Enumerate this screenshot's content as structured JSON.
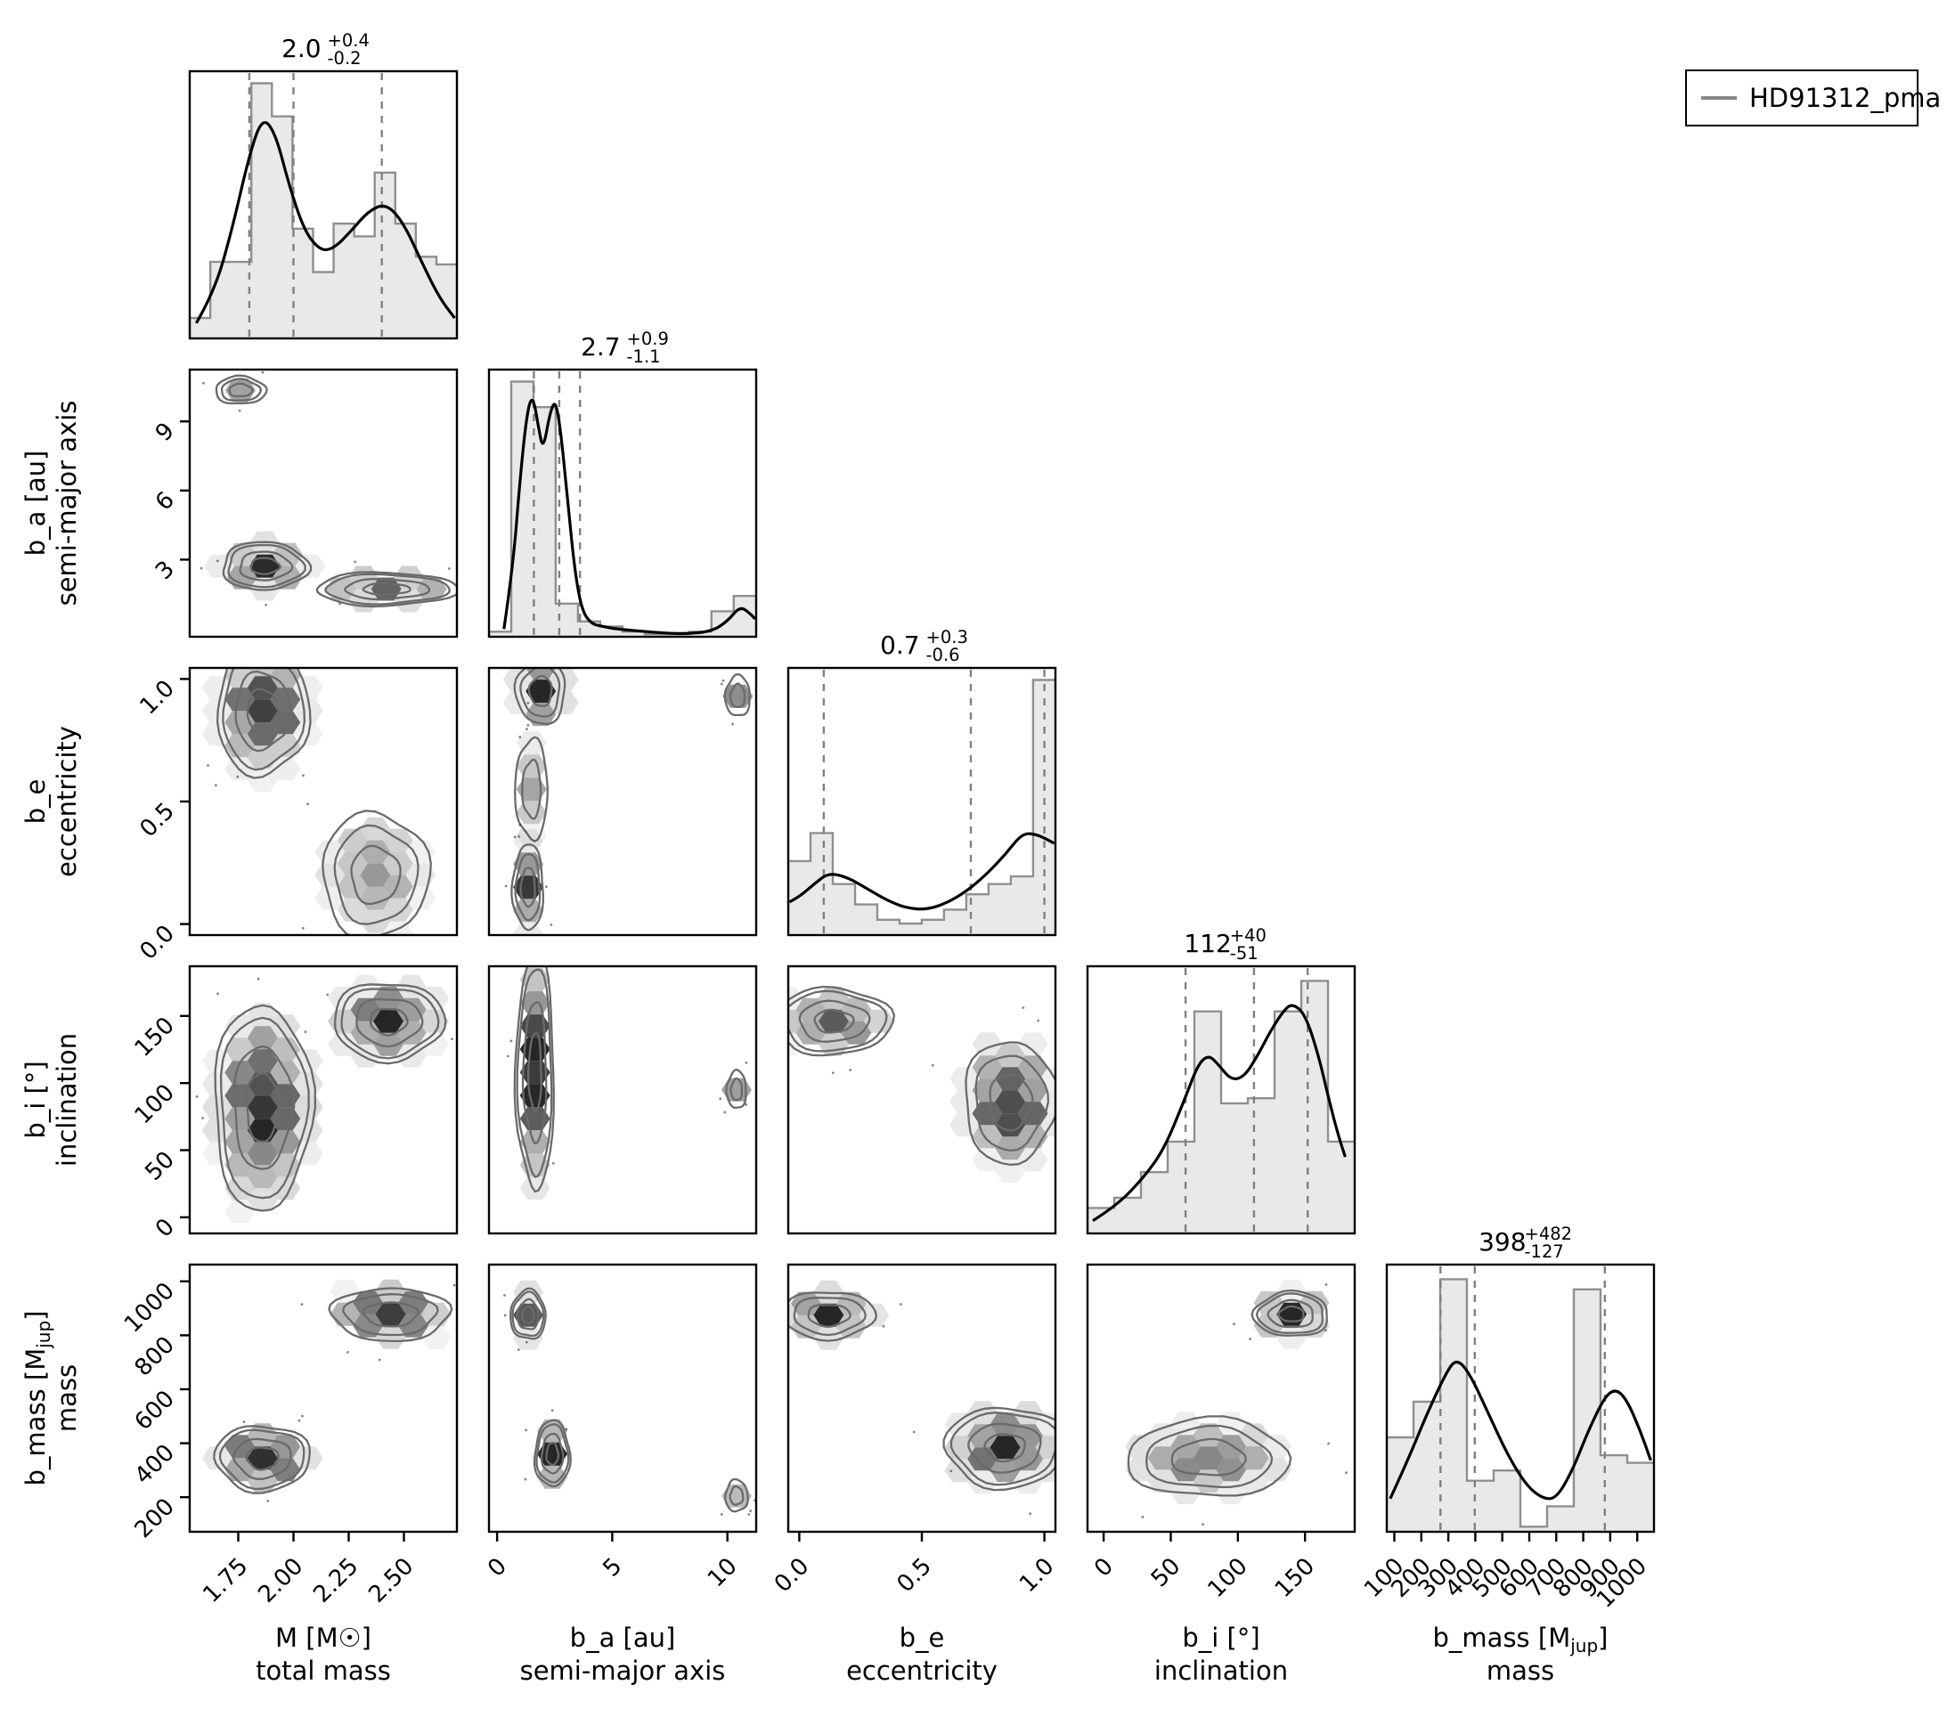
{
  "legend": {
    "label": "HD91312_pma",
    "line_color": "#888888"
  },
  "style": {
    "background": "#ffffff",
    "hist_fill": "#e9e9e9",
    "hist_edge": "#8f8f8f",
    "kde_color": "#000000",
    "quantile_color": "#808080",
    "contour_color": "#6a6a6a",
    "hex_color": "#000000",
    "axis_color": "#000000"
  },
  "chart_data": {
    "type": "corner",
    "legend_entries": [
      "HD91312_pma"
    ],
    "params": [
      {
        "id": "M",
        "label": "M [M☉]",
        "sublabel": "total mass",
        "range": [
          1.53,
          2.74
        ],
        "xticks": [
          1.75,
          2.0,
          2.25,
          2.5
        ],
        "xtick_labels": [
          "1.75",
          "2.00",
          "2.25",
          "2.50"
        ],
        "yticks": [],
        "ytick_labels": [],
        "quantiles": [
          1.8,
          2.0,
          2.4
        ],
        "title": {
          "median": "2.0",
          "plus": "+0.4",
          "minus": "-0.2"
        },
        "hist": {
          "start": 1.53,
          "binw": 0.0931,
          "heights": [
            0.08,
            0.3,
            0.3,
            1.0,
            0.87,
            0.43,
            0.26,
            0.45,
            0.4,
            0.65,
            0.45,
            0.32,
            0.29
          ]
        },
        "kde": [
          [
            1.56,
            0.06
          ],
          [
            1.64,
            0.18
          ],
          [
            1.72,
            0.42
          ],
          [
            1.8,
            0.72
          ],
          [
            1.86,
            0.87
          ],
          [
            1.92,
            0.8
          ],
          [
            1.98,
            0.6
          ],
          [
            2.05,
            0.42
          ],
          [
            2.12,
            0.345
          ],
          [
            2.18,
            0.35
          ],
          [
            2.26,
            0.42
          ],
          [
            2.34,
            0.5
          ],
          [
            2.42,
            0.53
          ],
          [
            2.5,
            0.45
          ],
          [
            2.58,
            0.3
          ],
          [
            2.66,
            0.16
          ],
          [
            2.73,
            0.08
          ]
        ]
      },
      {
        "id": "b_a",
        "label": "b_a [au]",
        "sublabel": "semi-major axis",
        "range": [
          -0.35,
          11.25
        ],
        "xticks": [
          0,
          5,
          10
        ],
        "xtick_labels": [
          "0",
          "5",
          "10"
        ],
        "yticks": [
          3,
          6,
          9
        ],
        "ytick_labels": [
          "3",
          "6",
          "9"
        ],
        "quantiles": [
          1.6,
          2.7,
          3.6
        ],
        "title": {
          "median": "2.7",
          "plus": "+0.9",
          "minus": "-1.1"
        },
        "hist": {
          "start": -0.35,
          "binw": 0.966,
          "heights": [
            0.02,
            1.0,
            0.9,
            0.13,
            0.06,
            0.04,
            0.02,
            0.01,
            0.01,
            0.02,
            0.1,
            0.16
          ]
        },
        "kde": [
          [
            0.3,
            0.03
          ],
          [
            0.7,
            0.28
          ],
          [
            1.0,
            0.62
          ],
          [
            1.3,
            0.88
          ],
          [
            1.55,
            0.95
          ],
          [
            1.8,
            0.82
          ],
          [
            2.0,
            0.73
          ],
          [
            2.3,
            0.88
          ],
          [
            2.55,
            0.93
          ],
          [
            2.8,
            0.78
          ],
          [
            3.1,
            0.5
          ],
          [
            3.4,
            0.24
          ],
          [
            3.7,
            0.1
          ],
          [
            4.1,
            0.05
          ],
          [
            4.6,
            0.04
          ],
          [
            5.2,
            0.03
          ],
          [
            6.5,
            0.02
          ],
          [
            8.0,
            0.01
          ],
          [
            9.3,
            0.02
          ],
          [
            10.0,
            0.06
          ],
          [
            10.55,
            0.12
          ],
          [
            11.0,
            0.09
          ],
          [
            11.2,
            0.07
          ]
        ]
      },
      {
        "id": "b_e",
        "label": "b_e",
        "sublabel": "eccentricity",
        "range": [
          -0.045,
          1.045
        ],
        "xticks": [
          0.0,
          0.5,
          1.0
        ],
        "xtick_labels": [
          "0.0",
          "0.5",
          "1.0"
        ],
        "yticks": [
          0.0,
          0.5,
          1.0
        ],
        "ytick_labels": [
          "0.0",
          "0.5",
          "1.0"
        ],
        "quantiles": [
          0.1,
          0.7,
          1.0
        ],
        "title": {
          "median": "0.7",
          "plus": "+0.3",
          "minus": "-0.6"
        },
        "hist": {
          "start": -0.045,
          "binw": 0.0908,
          "heights": [
            0.29,
            0.4,
            0.2,
            0.12,
            0.06,
            0.045,
            0.06,
            0.1,
            0.16,
            0.2,
            0.23,
            1.0
          ]
        },
        "kde": [
          [
            -0.04,
            0.13
          ],
          [
            0.0,
            0.15
          ],
          [
            0.06,
            0.2
          ],
          [
            0.12,
            0.245
          ],
          [
            0.2,
            0.225
          ],
          [
            0.28,
            0.18
          ],
          [
            0.36,
            0.135
          ],
          [
            0.44,
            0.105
          ],
          [
            0.52,
            0.1
          ],
          [
            0.6,
            0.125
          ],
          [
            0.68,
            0.17
          ],
          [
            0.76,
            0.235
          ],
          [
            0.84,
            0.315
          ],
          [
            0.91,
            0.4
          ],
          [
            0.97,
            0.395
          ],
          [
            1.04,
            0.36
          ]
        ]
      },
      {
        "id": "b_i",
        "label": "b_i [°]",
        "sublabel": "inclination",
        "range": [
          -12,
          187
        ],
        "xticks": [
          0,
          50,
          100,
          150
        ],
        "xtick_labels": [
          "0",
          "50",
          "100",
          "150"
        ],
        "yticks": [
          0,
          50,
          100,
          150
        ],
        "ytick_labels": [
          "0",
          "50",
          "100",
          "150"
        ],
        "quantiles": [
          61,
          112,
          152
        ],
        "title": {
          "median": "112",
          "plus": "+40",
          "minus": "-51"
        },
        "hist": {
          "start": -12,
          "binw": 19.9,
          "heights": [
            0.1,
            0.14,
            0.24,
            0.36,
            0.87,
            0.51,
            0.53,
            0.87,
            0.99,
            0.36
          ]
        },
        "kde": [
          [
            -8,
            0.05
          ],
          [
            10,
            0.11
          ],
          [
            30,
            0.22
          ],
          [
            45,
            0.33
          ],
          [
            60,
            0.52
          ],
          [
            70,
            0.66
          ],
          [
            78,
            0.7
          ],
          [
            85,
            0.665
          ],
          [
            95,
            0.6
          ],
          [
            105,
            0.615
          ],
          [
            115,
            0.7
          ],
          [
            125,
            0.8
          ],
          [
            135,
            0.88
          ],
          [
            141,
            0.9
          ],
          [
            150,
            0.86
          ],
          [
            160,
            0.7
          ],
          [
            168,
            0.52
          ],
          [
            175,
            0.38
          ],
          [
            180,
            0.3
          ]
        ]
      },
      {
        "id": "b_mass",
        "label": "b_mass [M_{jup}]",
        "sublabel": "mass",
        "range": [
          72,
          1062
        ],
        "xticks": [
          100,
          200,
          300,
          400,
          500,
          600,
          700,
          800,
          900,
          1000
        ],
        "xtick_labels": [
          "100",
          "200",
          "300",
          "400",
          "500",
          "600",
          "700",
          "800",
          "900",
          "1000"
        ],
        "yticks": [
          200,
          400,
          600,
          800,
          1000
        ],
        "ytick_labels": [
          "200",
          "400",
          "600",
          "800",
          "1000"
        ],
        "quantiles": [
          271,
          398,
          880
        ],
        "title": {
          "median": "398",
          "plus": "+482",
          "minus": "-127"
        },
        "hist": {
          "start": 72,
          "binw": 99,
          "heights": [
            0.37,
            0.51,
            0.99,
            0.2,
            0.24,
            0.02,
            0.1,
            0.95,
            0.3,
            0.27
          ]
        },
        "kde": [
          [
            85,
            0.13
          ],
          [
            150,
            0.28
          ],
          [
            220,
            0.46
          ],
          [
            290,
            0.62
          ],
          [
            330,
            0.68
          ],
          [
            380,
            0.62
          ],
          [
            450,
            0.46
          ],
          [
            520,
            0.3
          ],
          [
            590,
            0.18
          ],
          [
            650,
            0.13
          ],
          [
            700,
            0.13
          ],
          [
            760,
            0.24
          ],
          [
            820,
            0.4
          ],
          [
            880,
            0.53
          ],
          [
            920,
            0.56
          ],
          [
            960,
            0.52
          ],
          [
            1010,
            0.4
          ],
          [
            1050,
            0.28
          ]
        ]
      }
    ],
    "cells": [
      {
        "row": 1,
        "col": 0,
        "clusters": [
          {
            "cx": 1.76,
            "cy": 10.35,
            "rx": 0.085,
            "ry": 0.45,
            "rings": 3,
            "shade": 0.3
          },
          {
            "cx": 1.87,
            "cy": 2.72,
            "rx": 0.14,
            "ry": 0.75,
            "rings": 4,
            "shade": 0.92
          },
          {
            "cx": 2.42,
            "cy": 1.72,
            "rx": 0.23,
            "ry": 0.52,
            "rings": 4,
            "shade": 0.72
          }
        ]
      },
      {
        "row": 2,
        "col": 0,
        "clusters": [
          {
            "cx": 1.86,
            "cy": 0.87,
            "rx": 0.15,
            "ry": 0.19,
            "rings": 4,
            "shade": 0.88
          },
          {
            "cx": 2.37,
            "cy": 0.2,
            "rx": 0.18,
            "ry": 0.19,
            "rings": 3,
            "shade": 0.45
          }
        ]
      },
      {
        "row": 2,
        "col": 1,
        "clusters": [
          {
            "cx": 1.9,
            "cy": 0.95,
            "rx": 0.8,
            "ry": 0.1,
            "rings": 3,
            "shade": 1.0
          },
          {
            "cx": 1.5,
            "cy": 0.55,
            "rx": 0.55,
            "ry": 0.16,
            "rings": 2,
            "shade": 0.35
          },
          {
            "cx": 1.35,
            "cy": 0.15,
            "rx": 0.5,
            "ry": 0.13,
            "rings": 3,
            "shade": 0.85
          },
          {
            "cx": 10.45,
            "cy": 0.93,
            "rx": 0.42,
            "ry": 0.065,
            "rings": 2,
            "shade": 0.4
          }
        ]
      },
      {
        "row": 3,
        "col": 0,
        "clusters": [
          {
            "cx": 1.86,
            "cy": 82,
            "rx": 0.16,
            "ry": 55,
            "rings": 4,
            "shade": 0.88
          },
          {
            "cx": 2.43,
            "cy": 146,
            "rx": 0.18,
            "ry": 21,
            "rings": 4,
            "shade": 0.82
          }
        ]
      },
      {
        "row": 3,
        "col": 1,
        "clusters": [
          {
            "cx": 1.65,
            "cy": 108,
            "rx": 0.6,
            "ry": 63,
            "rings": 4,
            "shade": 0.92
          },
          {
            "cx": 10.4,
            "cy": 95,
            "rx": 0.33,
            "ry": 11,
            "rings": 2,
            "shade": 0.35
          }
        ]
      },
      {
        "row": 3,
        "col": 2,
        "clusters": [
          {
            "cx": 0.14,
            "cy": 146,
            "rx": 0.17,
            "ry": 18,
            "rings": 4,
            "shade": 0.72
          },
          {
            "cx": 0.86,
            "cy": 86,
            "rx": 0.14,
            "ry": 34,
            "rings": 3,
            "shade": 0.92
          }
        ]
      },
      {
        "row": 4,
        "col": 0,
        "clusters": [
          {
            "cx": 1.86,
            "cy": 345,
            "rx": 0.155,
            "ry": 88,
            "rings": 4,
            "shade": 0.92
          },
          {
            "cx": 2.44,
            "cy": 878,
            "rx": 0.2,
            "ry": 73,
            "rings": 3,
            "shade": 0.88
          }
        ]
      },
      {
        "row": 4,
        "col": 1,
        "clusters": [
          {
            "cx": 1.35,
            "cy": 875,
            "rx": 0.55,
            "ry": 66,
            "rings": 4,
            "shade": 0.92
          },
          {
            "cx": 2.4,
            "cy": 360,
            "rx": 0.55,
            "ry": 88,
            "rings": 4,
            "shade": 0.9
          },
          {
            "cx": 10.4,
            "cy": 205,
            "rx": 0.38,
            "ry": 46,
            "rings": 2,
            "shade": 0.32
          }
        ]
      },
      {
        "row": 4,
        "col": 2,
        "clusters": [
          {
            "cx": 0.12,
            "cy": 875,
            "rx": 0.14,
            "ry": 66,
            "rings": 3,
            "shade": 0.92
          },
          {
            "cx": 0.84,
            "cy": 385,
            "rx": 0.175,
            "ry": 108,
            "rings": 4,
            "shade": 0.88
          }
        ]
      },
      {
        "row": 4,
        "col": 3,
        "clusters": [
          {
            "cx": 140,
            "cy": 878,
            "rx": 20,
            "ry": 60,
            "rings": 4,
            "shade": 0.92
          },
          {
            "cx": 78,
            "cy": 345,
            "rx": 45,
            "ry": 108,
            "rings": 3,
            "shade": 0.55
          }
        ]
      }
    ]
  }
}
